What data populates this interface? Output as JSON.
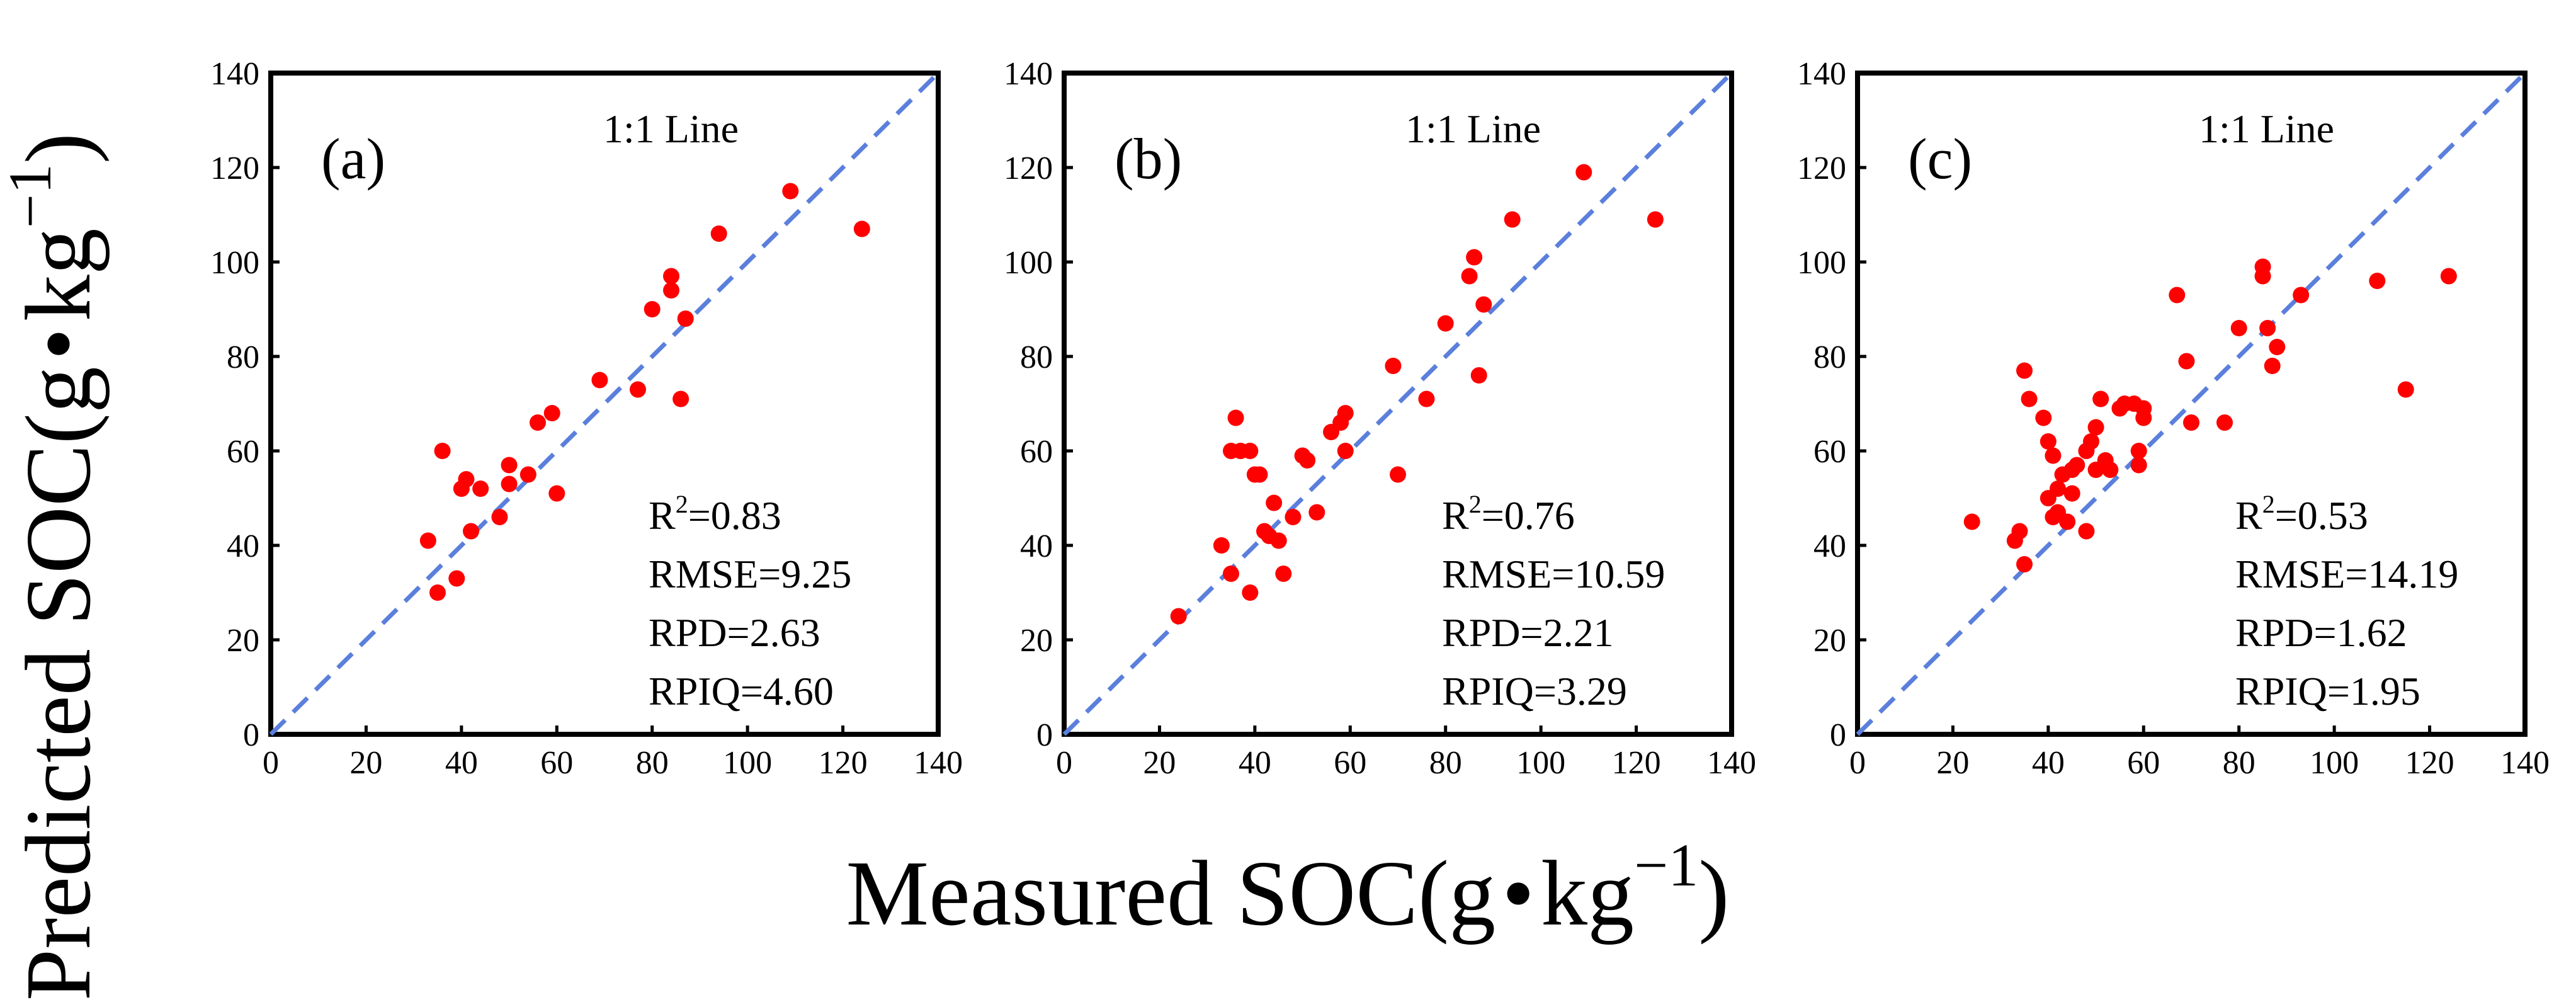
{
  "figure": {
    "xlabel_main": "Measured SOC(g",
    "xlabel_dot": "•",
    "xlabel_unit": "kg",
    "xlabel_exp": "−1",
    "xlabel_close": ")",
    "ylabel_main": "Predicted SOC(g",
    "ylabel_dot": "•",
    "ylabel_unit": "kg",
    "ylabel_exp": "−1",
    "ylabel_close": ")"
  },
  "colors": {
    "point": "#ff0000",
    "line": "#5b7fdc",
    "axis": "#000000"
  },
  "chart_data": [
    {
      "type": "scatter",
      "panel": "(a)",
      "line_label": "1:1 Line",
      "xlim": [
        0,
        140
      ],
      "ylim": [
        0,
        140
      ],
      "xticks": [
        0,
        20,
        40,
        60,
        80,
        100,
        120,
        140
      ],
      "yticks": [
        0,
        20,
        40,
        60,
        80,
        100,
        120,
        140
      ],
      "stats": {
        "r2_label": "R",
        "r2_sup": "2",
        "r2_value": "=0.83",
        "rmse": "RMSE=9.25",
        "rpd": "RPD=2.63",
        "rpiq": "RPIQ=4.60"
      },
      "x": [
        33,
        35,
        36,
        39,
        40,
        41,
        42,
        44,
        48,
        50,
        50,
        54,
        56,
        59,
        60,
        69,
        77,
        80,
        84,
        84,
        86,
        87,
        94,
        109,
        124
      ],
      "y": [
        41,
        30,
        60,
        33,
        52,
        54,
        43,
        52,
        46,
        57,
        53,
        55,
        66,
        68,
        51,
        75,
        73,
        90,
        97,
        94,
        71,
        88,
        106,
        115,
        107
      ]
    },
    {
      "type": "scatter",
      "panel": "(b)",
      "line_label": "1:1 Line",
      "xlim": [
        0,
        140
      ],
      "ylim": [
        0,
        140
      ],
      "xticks": [
        0,
        20,
        40,
        60,
        80,
        100,
        120,
        140
      ],
      "yticks": [
        0,
        20,
        40,
        60,
        80,
        100,
        120,
        140
      ],
      "stats": {
        "r2_label": "R",
        "r2_sup": "2",
        "r2_value": "=0.76",
        "rmse": "RMSE=10.59",
        "rpd": "RPD=2.21",
        "rpiq": "RPIQ=3.29"
      },
      "x": [
        24,
        33,
        35,
        35,
        36,
        37,
        39,
        39,
        40,
        41,
        42,
        43,
        44,
        45,
        46,
        48,
        50,
        51,
        53,
        56,
        58,
        59,
        59,
        69,
        70,
        76,
        80,
        85,
        86,
        87,
        88,
        94,
        109,
        124
      ],
      "y": [
        25,
        40,
        34,
        60,
        67,
        60,
        30,
        60,
        55,
        55,
        43,
        42,
        49,
        41,
        34,
        46,
        59,
        58,
        47,
        64,
        66,
        68,
        60,
        78,
        55,
        71,
        87,
        97,
        101,
        76,
        91,
        109,
        119,
        109
      ]
    },
    {
      "type": "scatter",
      "panel": "(c)",
      "line_label": "1:1 Line",
      "xlim": [
        0,
        140
      ],
      "ylim": [
        0,
        140
      ],
      "xticks": [
        0,
        20,
        40,
        60,
        80,
        100,
        120,
        140
      ],
      "yticks": [
        0,
        20,
        40,
        60,
        80,
        100,
        120,
        140
      ],
      "stats": {
        "r2_label": "R",
        "r2_sup": "2",
        "r2_value": "=0.53",
        "rmse": "RMSE=14.19",
        "rpd": "RPD=1.62",
        "rpiq": "RPIQ=1.95"
      },
      "x": [
        24,
        33,
        34,
        35,
        35,
        36,
        39,
        40,
        40,
        41,
        41,
        42,
        42,
        43,
        44,
        45,
        45,
        46,
        48,
        48,
        49,
        50,
        50,
        51,
        52,
        53,
        55,
        56,
        58,
        59,
        59,
        60,
        60,
        67,
        69,
        70,
        77,
        80,
        85,
        85,
        86,
        87,
        88,
        93,
        109,
        115,
        124
      ],
      "y": [
        45,
        41,
        43,
        36,
        77,
        71,
        67,
        50,
        62,
        46,
        59,
        52,
        47,
        55,
        45,
        56,
        51,
        57,
        43,
        60,
        62,
        56,
        65,
        71,
        58,
        56,
        69,
        70,
        70,
        57,
        60,
        69,
        67,
        93,
        79,
        66,
        66,
        86,
        99,
        97,
        86,
        78,
        82,
        93,
        96,
        73,
        97
      ]
    }
  ]
}
